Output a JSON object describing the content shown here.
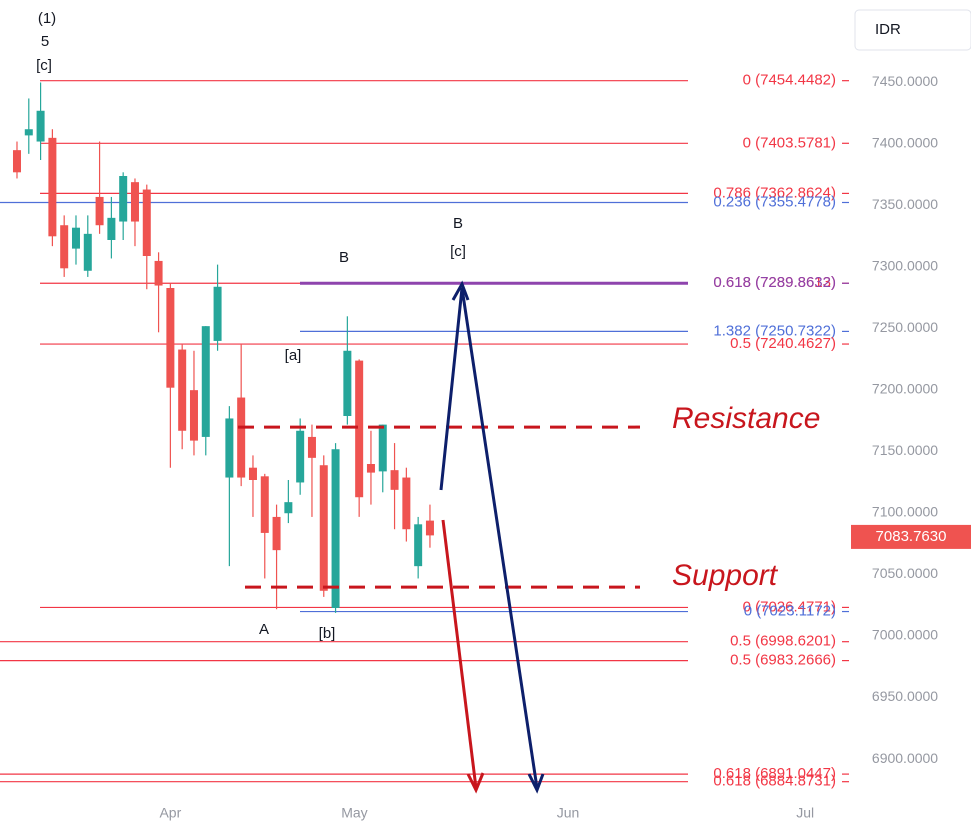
{
  "chart_data": {
    "type": "candlestick",
    "currency": "IDR",
    "ylim": [
      6870,
      7520
    ],
    "yticks": [
      {
        "value": 6900,
        "label": "6900.0000"
      },
      {
        "value": 6950,
        "label": "6950.0000"
      },
      {
        "value": 7000,
        "label": "7000.0000"
      },
      {
        "value": 7050,
        "label": "7050.0000"
      },
      {
        "value": 7100,
        "label": "7100.0000"
      },
      {
        "value": 7150,
        "label": "7150.0000"
      },
      {
        "value": 7200,
        "label": "7200.0000"
      },
      {
        "value": 7250,
        "label": "7250.0000"
      },
      {
        "value": 7300,
        "label": "7300.0000"
      },
      {
        "value": 7350,
        "label": "7350.0000"
      },
      {
        "value": 7400,
        "label": "7400.0000"
      },
      {
        "value": 7450,
        "label": "7450.0000"
      }
    ],
    "xlim": [
      -1.44,
      70.6
    ],
    "xticks": [
      {
        "value": 13,
        "label": "Apr"
      },
      {
        "value": 28.6,
        "label": "May"
      },
      {
        "value": 46.7,
        "label": "Jun"
      },
      {
        "value": 66.8,
        "label": "Jul"
      }
    ],
    "up_color": "#26a69a",
    "down_color": "#ef5350",
    "ohlc": [
      [
        7398,
        7405,
        7375,
        7380
      ],
      [
        7410,
        7440,
        7395,
        7415
      ],
      [
        7405,
        7453,
        7390,
        7430
      ],
      [
        7408,
        7415,
        7320,
        7328
      ],
      [
        7337,
        7345,
        7295,
        7302
      ],
      [
        7318,
        7345,
        7305,
        7335
      ],
      [
        7300,
        7345,
        7295,
        7330
      ],
      [
        7360,
        7405,
        7330,
        7337
      ],
      [
        7325,
        7360,
        7310,
        7343
      ],
      [
        7340,
        7380,
        7325,
        7377
      ],
      [
        7372,
        7375,
        7320,
        7340
      ],
      [
        7366,
        7370,
        7285,
        7312
      ],
      [
        7308,
        7315,
        7250,
        7288
      ],
      [
        7286,
        7290,
        7140,
        7205
      ],
      [
        7236,
        7240,
        7155,
        7170
      ],
      [
        7203,
        7235,
        7150,
        7162
      ],
      [
        7165,
        7255,
        7150,
        7255
      ],
      [
        7243,
        7305,
        7235,
        7287
      ],
      [
        7132,
        7190,
        7060,
        7180
      ],
      [
        7197,
        7240,
        7125,
        7132
      ],
      [
        7140,
        7150,
        7100,
        7130
      ],
      [
        7133,
        7135,
        7050,
        7087
      ],
      [
        7100,
        7110,
        7025,
        7073
      ],
      [
        7103,
        7130,
        7095,
        7112
      ],
      [
        7128,
        7180,
        7118,
        7170
      ],
      [
        7165,
        7175,
        7100,
        7148
      ],
      [
        7142,
        7150,
        7035,
        7040
      ],
      [
        7026,
        7160,
        7022,
        7155
      ],
      [
        7182,
        7263,
        7175,
        7235
      ],
      [
        7227,
        7228,
        7100,
        7116
      ],
      [
        7143,
        7170,
        7110,
        7136
      ],
      [
        7137,
        7175,
        7120,
        7175
      ],
      [
        7138,
        7160,
        7090,
        7122
      ],
      [
        7132,
        7140,
        7080,
        7090
      ],
      [
        7060,
        7100,
        7050,
        7094
      ],
      [
        7097,
        7110,
        7075,
        7085
      ]
    ],
    "last_price": {
      "value": 7083.763,
      "label": "7083.7630"
    },
    "levels": [
      {
        "label": "0 (7454.4482)",
        "value": 7454.4482,
        "color": "#f23645"
      },
      {
        "label": "0 (7403.5781)",
        "value": 7403.5781,
        "color": "#f23645"
      },
      {
        "label": "0.786 (7362.8624)",
        "value": 7362.8624,
        "color": "#f23645"
      },
      {
        "label": "0.236 (7355.4778)",
        "value": 7355.4778,
        "color": "#4f6fd8"
      },
      {
        "label": "0.618 (7289.8613)",
        "value": 7289.8613,
        "color": "#f23645"
      },
      {
        "label": "0.618 (7289.8632)",
        "value": 7289.8632,
        "color": "#8e44ad"
      },
      {
        "label": "1.382 (7250.7322)",
        "value": 7250.7322,
        "color": "#4f6fd8"
      },
      {
        "label": "0.5 (7240.4627)",
        "value": 7240.4627,
        "color": "#f23645"
      },
      {
        "label": "0 (7026.4771)",
        "value": 7026.4771,
        "color": "#f23645"
      },
      {
        "label": "0 (7023.1172)",
        "value": 7023.1172,
        "color": "#4f6fd8"
      },
      {
        "label": "0.5 (6998.6201)",
        "value": 6998.6201,
        "color": "#f23645"
      },
      {
        "label": "0.5 (6983.2666)",
        "value": 6983.2666,
        "color": "#f23645"
      },
      {
        "label": "0.618 (6891.0447)",
        "value": 6891.0447,
        "color": "#f23645"
      },
      {
        "label": "0.618 (6884.8731)",
        "value": 6884.8731,
        "color": "#f23645"
      }
    ],
    "resistance": {
      "label": "Resistance",
      "value": 7173
    },
    "support": {
      "label": "Support",
      "value": 7043
    },
    "annotations": [
      {
        "text": "(1)"
      },
      {
        "text": "5"
      },
      {
        "text": "[c]"
      },
      {
        "text": "B"
      },
      {
        "text": "B"
      },
      {
        "text": "[c]"
      },
      {
        "text": "[a]"
      },
      {
        "text": "A"
      },
      {
        "text": "[b]"
      }
    ]
  }
}
